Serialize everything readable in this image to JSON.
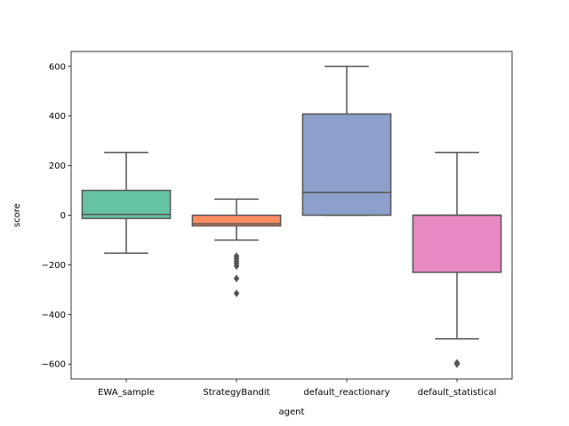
{
  "chart_data": {
    "type": "box",
    "xlabel": "agent",
    "ylabel": "score",
    "ylim": [
      -660,
      660
    ],
    "yticks": [
      -600,
      -400,
      -200,
      0,
      200,
      400,
      600
    ],
    "ytick_labels": [
      "−600",
      "−400",
      "−200",
      "0",
      "200",
      "400",
      "600"
    ],
    "grid": false,
    "categories": [
      "EWA_sample",
      "StrategyBandit",
      "default_reactionary",
      "default_statistical"
    ],
    "boxes": [
      {
        "category": "EWA_sample",
        "color": "#66c2a5",
        "whisker_low": -153,
        "q1": -13,
        "median": 3,
        "q3": 100,
        "whisker_high": 253,
        "outliers": []
      },
      {
        "category": "StrategyBandit",
        "color": "#fc8d62",
        "whisker_low": -100,
        "q1": -43,
        "median": -35,
        "q3": 0,
        "whisker_high": 65,
        "outliers": [
          -165,
          -175,
          -185,
          -195,
          -205,
          -255,
          -315
        ]
      },
      {
        "category": "default_reactionary",
        "color": "#8da0cb",
        "whisker_low": 0,
        "q1": 0,
        "median": 92,
        "q3": 408,
        "whisker_high": 600,
        "outliers": []
      },
      {
        "category": "default_statistical",
        "color": "#e78ac3",
        "whisker_low": -498,
        "q1": -230,
        "median": 0,
        "q3": 0,
        "whisker_high": 253,
        "outliers": [
          -595,
          -600
        ]
      }
    ]
  }
}
